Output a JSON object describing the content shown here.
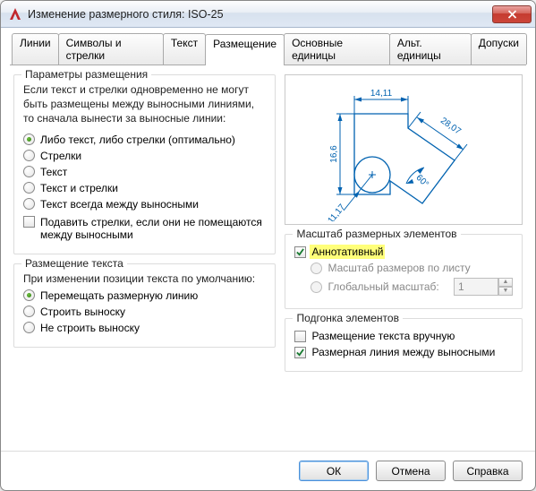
{
  "window": {
    "title": "Изменение размерного стиля: ISO-25"
  },
  "tabs": {
    "lines": "Линии",
    "symbols": "Символы и стрелки",
    "text": "Текст",
    "fit": "Размещение",
    "primary": "Основные единицы",
    "alt": "Альт. единицы",
    "tol": "Допуски",
    "active": "fit"
  },
  "fitGroup": {
    "title": "Параметры размещения",
    "desc": "Если текст и стрелки одновременно не могут быть размещены между выносными линиями, то сначала вынести за выносные линии:",
    "opts": {
      "best": "Либо текст, либо стрелки (оптимально)",
      "arrows": "Стрелки",
      "text": "Текст",
      "both": "Текст и стрелки",
      "keep": "Текст всегда между выносными"
    },
    "selected": "best",
    "suppress": "Подавить стрелки, если они не помещаются между выносными",
    "suppress_on": false
  },
  "textPlace": {
    "title": "Размещение текста",
    "desc": "При изменении позиции текста по умолчанию:",
    "opts": {
      "move": "Перемещать размерную линию",
      "leader": "Строить выноску",
      "none": "Не строить выноску"
    },
    "selected": "move"
  },
  "preview": {
    "dim_top": "14,11",
    "dim_left": "16,6",
    "dim_diag": "28,07",
    "dim_angle": "60°",
    "dim_radius": "R11,17",
    "stroke": "#0062b0",
    "text_color": "#0062b0",
    "bg": "#ffffff"
  },
  "scale": {
    "title": "Масштаб размерных элементов",
    "annotative": "Аннотативный",
    "annotative_on": true,
    "layout": "Масштаб размеров по листу",
    "global": "Глобальный масштаб:",
    "global_val": "1"
  },
  "fine": {
    "title": "Подгонка элементов",
    "manual": "Размещение текста вручную",
    "manual_on": false,
    "force": "Размерная линия между выносными",
    "force_on": true
  },
  "buttons": {
    "ok": "ОК",
    "cancel": "Отмена",
    "help": "Справка"
  }
}
